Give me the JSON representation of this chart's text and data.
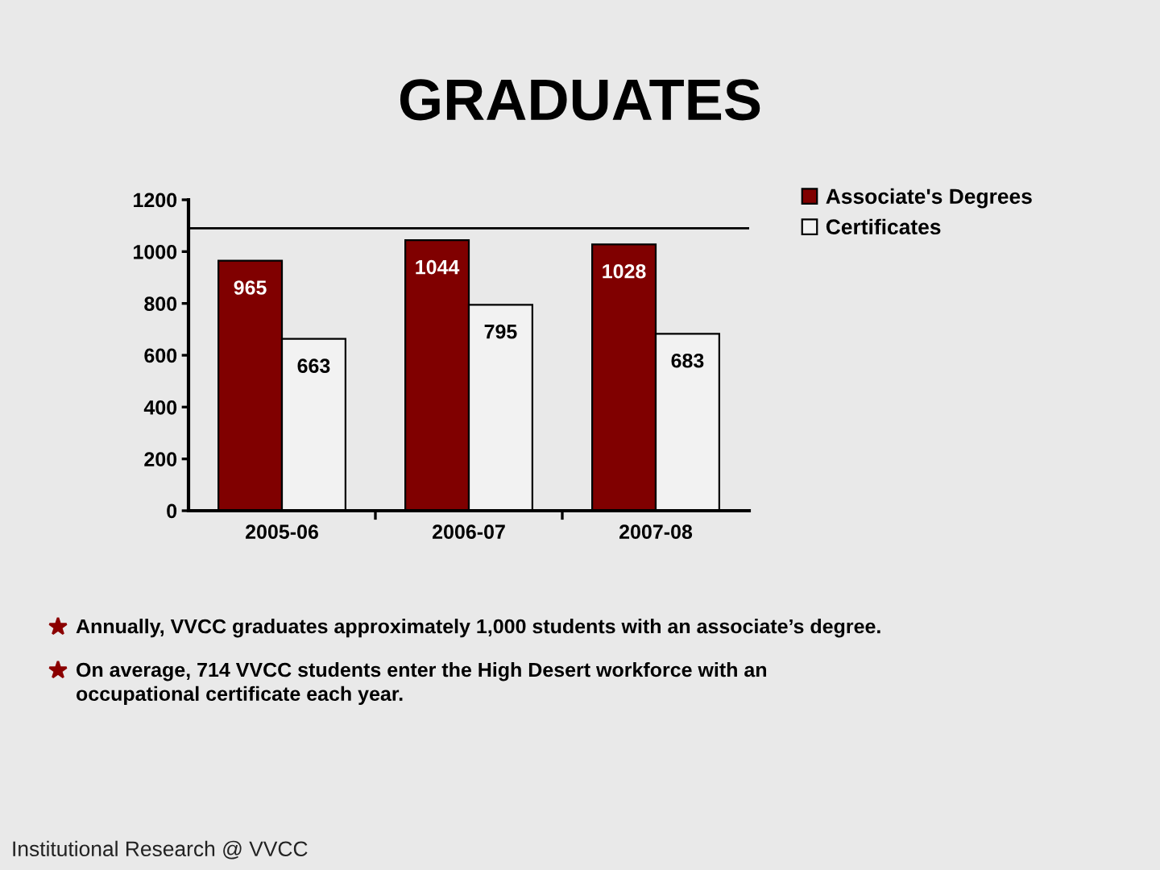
{
  "chart_data": {
    "type": "bar",
    "title": "GRADUATES",
    "categories": [
      "2005-06",
      "2006-07",
      "2007-08"
    ],
    "series": [
      {
        "name": "Associate's Degrees",
        "color": "#800000",
        "values": [
          965,
          1044,
          1028
        ]
      },
      {
        "name": "Certificates",
        "color": "#f2f2f2",
        "values": [
          663,
          795,
          683
        ]
      }
    ],
    "ylim": [
      0,
      1200
    ],
    "yticks": [
      0,
      200,
      400,
      600,
      800,
      1000,
      1200
    ],
    "data_labels": true,
    "legend": "top right",
    "ref_lines": [
      {
        "axis": "y",
        "value": 1090,
        "color": "#000000"
      }
    ],
    "annotations": [
      "Annually, VVCC graduates approximately 1,000 students with an associate’s degree.",
      "On average, 714 VVCC students enter the High Desert workforce with an occupational certificate each year.",
      "Institutional Research @ VVCC"
    ]
  }
}
